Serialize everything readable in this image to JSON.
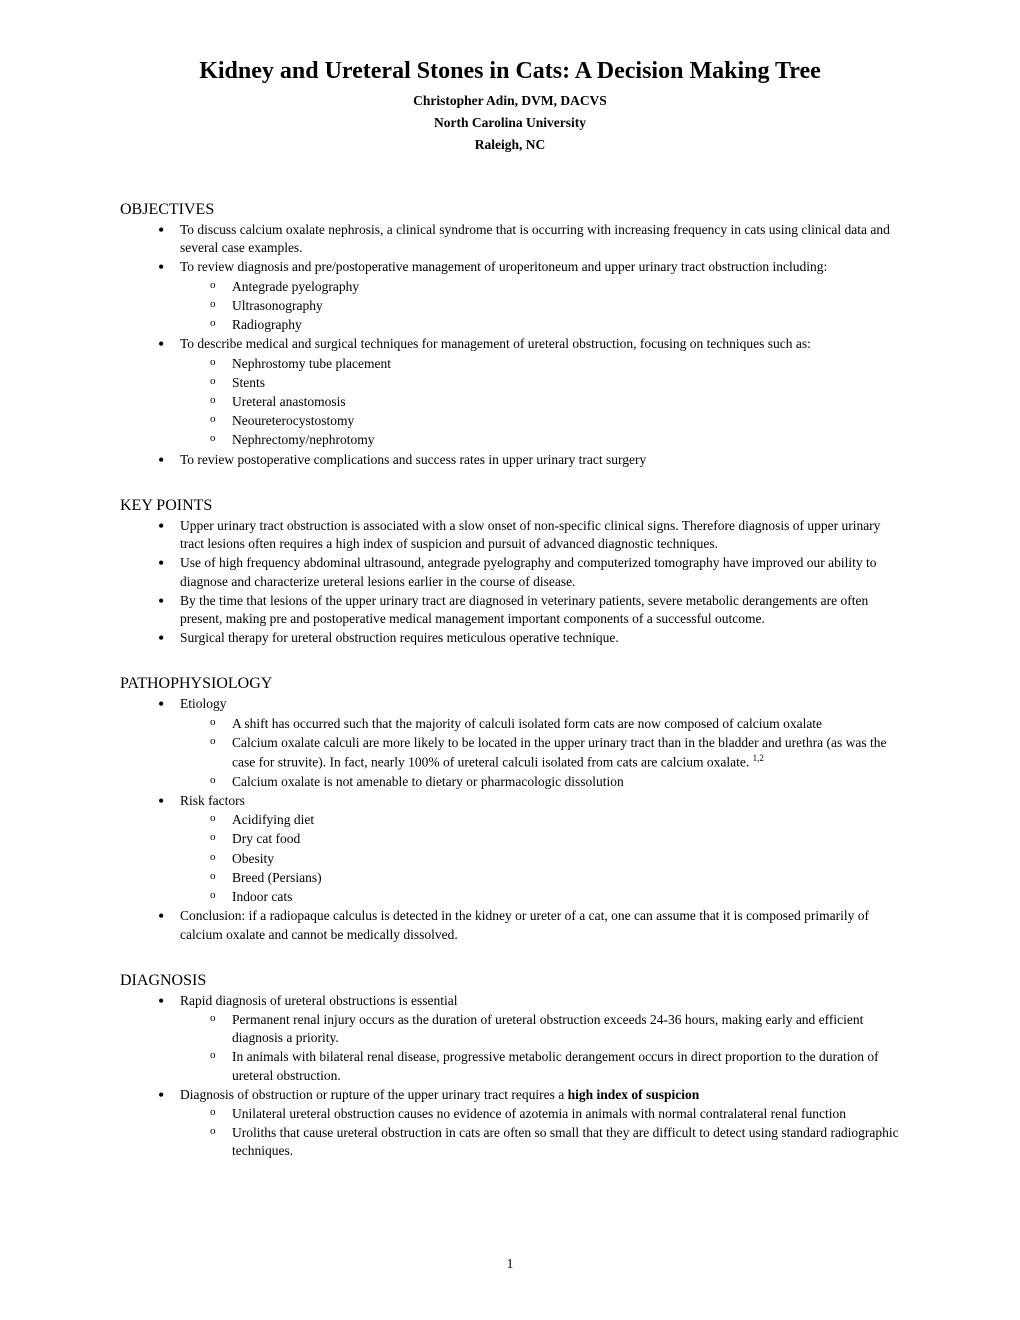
{
  "title": "Kidney and Ureteral Stones in Cats: A Decision Making Tree",
  "author": "Christopher Adin, DVM, DACVS",
  "institution": "North Carolina University",
  "location": "Raleigh, NC",
  "page_number": "1",
  "sections": {
    "objectives": {
      "heading": "OBJECTIVES",
      "items": [
        {
          "text": "To discuss calcium oxalate nephrosis, a clinical syndrome that is occurring with increasing frequency in cats using clinical data and several case examples."
        },
        {
          "text": "To review diagnosis and pre/postoperative management of uroperitoneum and upper urinary tract obstruction including:",
          "sub": [
            "Antegrade pyelography",
            "Ultrasonography",
            "Radiography"
          ]
        },
        {
          "text": "To describe medical and surgical techniques for management of ureteral obstruction, focusing on techniques such as:",
          "sub": [
            "Nephrostomy tube placement",
            "Stents",
            "Ureteral anastomosis",
            "Neoureterocystostomy",
            "Nephrectomy/nephrotomy"
          ]
        },
        {
          "text": "To review postoperative complications and success rates in upper urinary tract surgery"
        }
      ]
    },
    "key_points": {
      "heading": "KEY POINTS",
      "items": [
        {
          "text": "Upper urinary tract obstruction is associated with a slow onset of non-specific clinical signs. Therefore diagnosis of upper urinary tract lesions often requires a high index of suspicion and pursuit of advanced diagnostic techniques."
        },
        {
          "text": "Use of high frequency abdominal ultrasound, antegrade pyelography and computerized tomography have improved our ability to diagnose and characterize ureteral lesions earlier in the course of disease."
        },
        {
          "text": "By the time that lesions of the upper urinary tract are diagnosed in veterinary patients, severe metabolic derangements are often present, making pre and postoperative medical management important components of a successful outcome."
        },
        {
          "text": "Surgical therapy for ureteral obstruction requires meticulous operative technique."
        }
      ]
    },
    "pathophysiology": {
      "heading": "PATHOPHYSIOLOGY",
      "items": [
        {
          "text": "Etiology",
          "sub": [
            "A shift has occurred such that the majority of calculi isolated form cats are now composed of calcium oxalate",
            "Calcium oxalate calculi are more likely to be located in the upper urinary tract than in the bladder and urethra (as was the case for struvite). In fact, nearly 100% of ureteral calculi isolated from cats are calcium oxalate. ",
            "Calcium oxalate is not amenable to dietary or pharmacologic dissolution"
          ],
          "sup_ref": "1,2",
          "sup_on_index": 1
        },
        {
          "text": "Risk factors",
          "sub": [
            "Acidifying diet",
            "Dry cat food",
            "Obesity",
            "Breed (Persians)",
            "Indoor cats"
          ]
        },
        {
          "text": "Conclusion: if a radiopaque calculus is detected in the kidney or ureter of a cat, one can assume that it is composed primarily of calcium oxalate and cannot be medically dissolved."
        }
      ]
    },
    "diagnosis": {
      "heading": "DIAGNOSIS",
      "items": [
        {
          "text": "Rapid diagnosis of ureteral obstructions is essential",
          "sub": [
            "Permanent renal injury occurs as the duration of ureteral obstruction exceeds 24-36 hours, making early and efficient diagnosis a priority.",
            "In animals with bilateral renal disease, progressive metabolic derangement occurs in direct proportion to the duration of ureteral obstruction."
          ]
        },
        {
          "text_pre": "Diagnosis of obstruction or rupture of the upper urinary tract requires a ",
          "text_bold": "high index of suspicion",
          "sub": [
            "Unilateral ureteral obstruction causes no evidence of azotemia in animals with normal contralateral renal function",
            "Uroliths that cause ureteral obstruction in cats are often so small that they are difficult to detect using standard radiographic techniques."
          ]
        }
      ]
    }
  }
}
